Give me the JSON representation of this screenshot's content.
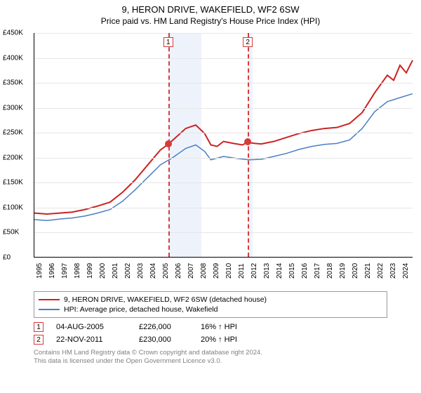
{
  "title": "9, HERON DRIVE, WAKEFIELD, WF2 6SW",
  "subtitle": "Price paid vs. HM Land Registry's House Price Index (HPI)",
  "chart": {
    "type": "line",
    "background_color": "#ffffff",
    "grid_color": "#e6e6e6",
    "y": {
      "min": 0,
      "max": 450000,
      "step": 50000,
      "ticks": [
        "£0",
        "£50K",
        "£100K",
        "£150K",
        "£200K",
        "£250K",
        "£300K",
        "£350K",
        "£400K",
        "£450K"
      ]
    },
    "x": {
      "min": 1995,
      "max": 2025,
      "step": 1,
      "ticks": [
        "1995",
        "1996",
        "1997",
        "1998",
        "1999",
        "2000",
        "2001",
        "2002",
        "2003",
        "2004",
        "2005",
        "2006",
        "2007",
        "2008",
        "2009",
        "2010",
        "2011",
        "2012",
        "2013",
        "2014",
        "2015",
        "2016",
        "2017",
        "2018",
        "2019",
        "2020",
        "2021",
        "2022",
        "2023",
        "2024"
      ]
    },
    "shaded_periods": [
      {
        "from": 2005.6,
        "to": 2008.2
      },
      {
        "from": 2011.9,
        "to": 2012.3
      }
    ],
    "reference_lines": [
      {
        "x": 2005.6,
        "label": "1"
      },
      {
        "x": 2011.9,
        "label": "2"
      }
    ],
    "markers": [
      {
        "x": 2005.6,
        "y": 226000
      },
      {
        "x": 2011.9,
        "y": 230000
      }
    ],
    "series": [
      {
        "name": "9, HERON DRIVE, WAKEFIELD, WF2 6SW (detached house)",
        "color": "#cc2222",
        "width": 2,
        "data": [
          [
            1995,
            88000
          ],
          [
            1996,
            86000
          ],
          [
            1997,
            88000
          ],
          [
            1998,
            90000
          ],
          [
            1999,
            95000
          ],
          [
            2000,
            102000
          ],
          [
            2001,
            110000
          ],
          [
            2002,
            130000
          ],
          [
            2003,
            155000
          ],
          [
            2004,
            185000
          ],
          [
            2005,
            215000
          ],
          [
            2005.6,
            226000
          ],
          [
            2006,
            235000
          ],
          [
            2007,
            258000
          ],
          [
            2007.8,
            265000
          ],
          [
            2008.5,
            248000
          ],
          [
            2009,
            225000
          ],
          [
            2009.5,
            222000
          ],
          [
            2010,
            232000
          ],
          [
            2010.8,
            228000
          ],
          [
            2011.5,
            225000
          ],
          [
            2011.9,
            230000
          ],
          [
            2012.5,
            228000
          ],
          [
            2013,
            227000
          ],
          [
            2014,
            232000
          ],
          [
            2015,
            240000
          ],
          [
            2016,
            248000
          ],
          [
            2017,
            254000
          ],
          [
            2018,
            258000
          ],
          [
            2019,
            260000
          ],
          [
            2020,
            268000
          ],
          [
            2021,
            290000
          ],
          [
            2022,
            330000
          ],
          [
            2023,
            365000
          ],
          [
            2023.5,
            355000
          ],
          [
            2024,
            385000
          ],
          [
            2024.5,
            370000
          ],
          [
            2025,
            395000
          ]
        ]
      },
      {
        "name": "HPI: Average price, detached house, Wakefield",
        "color": "#4a7fc4",
        "width": 1.5,
        "data": [
          [
            1995,
            75000
          ],
          [
            1996,
            73000
          ],
          [
            1997,
            76000
          ],
          [
            1998,
            78000
          ],
          [
            1999,
            82000
          ],
          [
            2000,
            88000
          ],
          [
            2001,
            95000
          ],
          [
            2002,
            112000
          ],
          [
            2003,
            135000
          ],
          [
            2004,
            160000
          ],
          [
            2005,
            185000
          ],
          [
            2006,
            200000
          ],
          [
            2007,
            218000
          ],
          [
            2007.8,
            225000
          ],
          [
            2008.5,
            212000
          ],
          [
            2009,
            195000
          ],
          [
            2010,
            202000
          ],
          [
            2011,
            198000
          ],
          [
            2012,
            195000
          ],
          [
            2013,
            196000
          ],
          [
            2014,
            202000
          ],
          [
            2015,
            208000
          ],
          [
            2016,
            216000
          ],
          [
            2017,
            222000
          ],
          [
            2018,
            226000
          ],
          [
            2019,
            228000
          ],
          [
            2020,
            235000
          ],
          [
            2021,
            258000
          ],
          [
            2022,
            292000
          ],
          [
            2023,
            312000
          ],
          [
            2024,
            320000
          ],
          [
            2025,
            328000
          ]
        ]
      }
    ]
  },
  "legend": {
    "items": [
      {
        "color": "#cc2222",
        "label": "9, HERON DRIVE, WAKEFIELD, WF2 6SW (detached house)"
      },
      {
        "color": "#4a7fc4",
        "label": "HPI: Average price, detached house, Wakefield"
      }
    ]
  },
  "transactions": [
    {
      "num": "1",
      "date": "04-AUG-2005",
      "price": "£226,000",
      "delta": "16% ↑ HPI"
    },
    {
      "num": "2",
      "date": "22-NOV-2011",
      "price": "£230,000",
      "delta": "20% ↑ HPI"
    }
  ],
  "footer": {
    "line1": "Contains HM Land Registry data © Crown copyright and database right 2024.",
    "line2": "This data is licensed under the Open Government Licence v3.0."
  }
}
